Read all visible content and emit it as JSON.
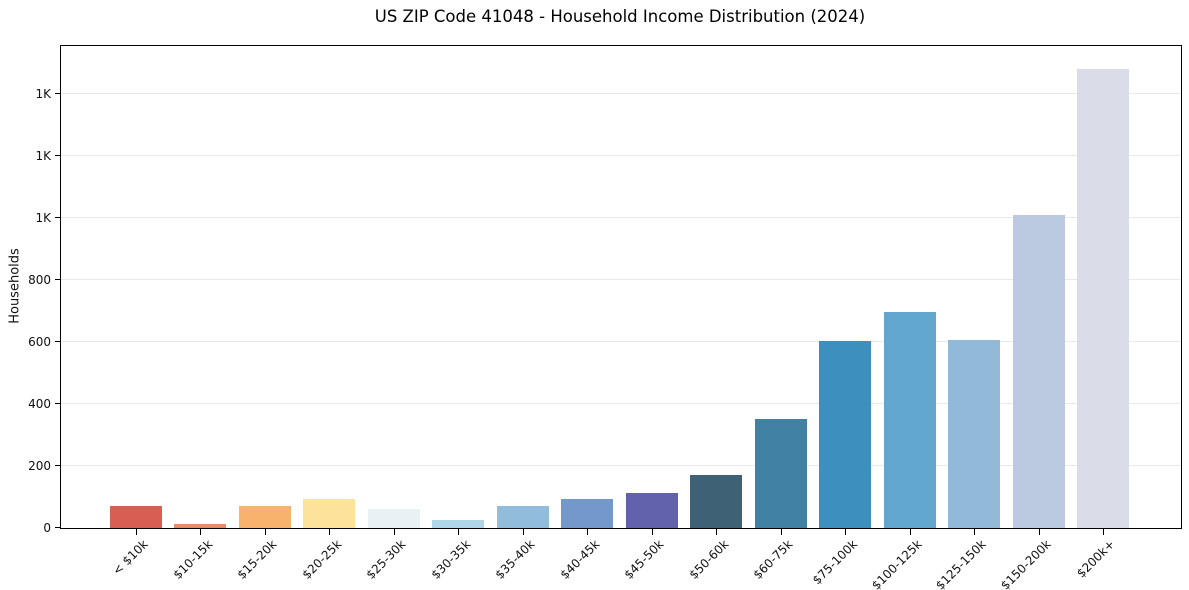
{
  "chart_data": {
    "type": "bar",
    "title": "US ZIP Code 41048 - Household Income Distribution (2024)",
    "xlabel": "",
    "ylabel": "Households",
    "categories": [
      "< $10k",
      "$10-15k",
      "$15-20k",
      "$20-25k",
      "$25-30k",
      "$30-35k",
      "$35-40k",
      "$40-45k",
      "$45-50k",
      "$50-60k",
      "$60-75k",
      "$75-100k",
      "$100-125k",
      "$125-150k",
      "$150-200k",
      "$200k+"
    ],
    "values": [
      70,
      14,
      70,
      95,
      62,
      25,
      70,
      95,
      112,
      170,
      350,
      603,
      695,
      607,
      1010,
      1480
    ],
    "bar_colors": [
      "#d6544a",
      "#e5875f",
      "#f9ad66",
      "#fde294",
      "#e7f1f3",
      "#abd5e8",
      "#8cb8da",
      "#6b93c8",
      "#5a58a7",
      "#35596f",
      "#377a9e",
      "#338abb",
      "#5aa2ca",
      "#8db5d7",
      "#b7c7df",
      "#d8dae7"
    ],
    "ylim": [
      0,
      1554
    ],
    "yticks": [
      {
        "value": 0,
        "label": "0"
      },
      {
        "value": 200,
        "label": "200"
      },
      {
        "value": 400,
        "label": "400"
      },
      {
        "value": 600,
        "label": "600"
      },
      {
        "value": 800,
        "label": "800"
      },
      {
        "value": 1000,
        "label": "1K"
      },
      {
        "value": 1200,
        "label": "1K"
      },
      {
        "value": 1400,
        "label": "1K"
      }
    ],
    "grid": true,
    "legend": false,
    "background": "#ffffff",
    "xtick_rotation": 45
  }
}
